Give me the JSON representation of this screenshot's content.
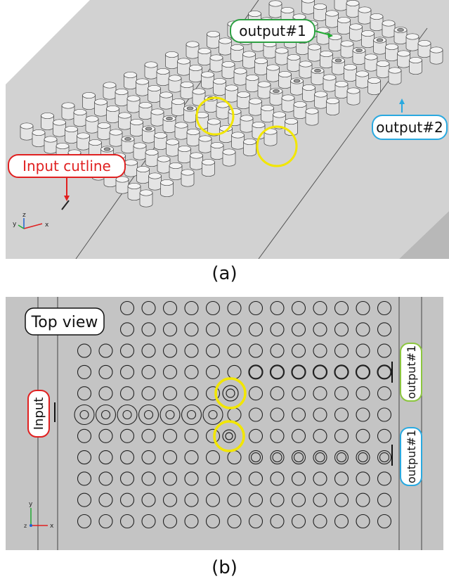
{
  "panel_a": {
    "caption": "(a)",
    "labels": {
      "output1": "output#1",
      "output2": "output#2",
      "input_cutline": "Input cutline"
    },
    "axes": {
      "x": "x",
      "y": "y",
      "z": "z"
    }
  },
  "panel_b": {
    "caption": "(b)",
    "labels": {
      "top_view": "Top view",
      "input": "Input",
      "output_top": "output#1",
      "output_bottom": "output#1"
    },
    "axes": {
      "x": "x",
      "y": "y",
      "z": "z"
    }
  },
  "colors": {
    "highlight_ring": "#f2e600",
    "output1_label_border": "#2ea043",
    "output2_label_border": "#29a9e0",
    "input_label_border": "#e02020",
    "green_tag_border": "#8cc63f",
    "background_gray": "#c4c4c4"
  }
}
